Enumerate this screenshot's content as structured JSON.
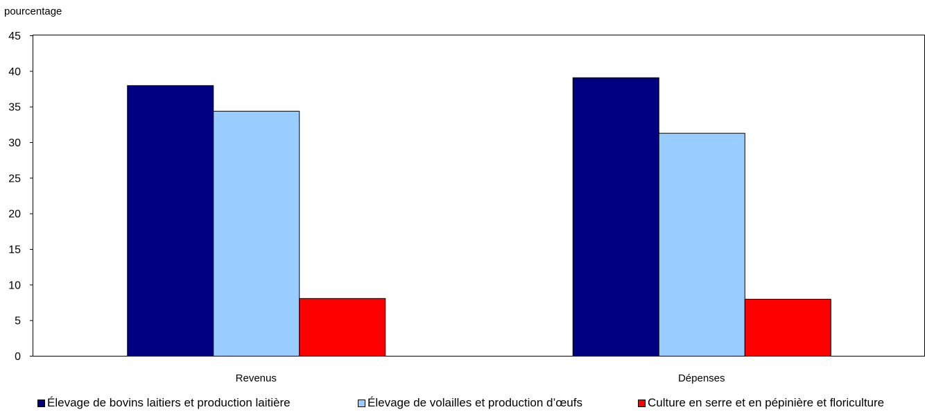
{
  "chart_data": {
    "type": "bar",
    "title": "",
    "ylabel": "pourcentage",
    "xlabel": "",
    "ylim": [
      0,
      45
    ],
    "yticks": [
      0,
      5,
      10,
      15,
      20,
      25,
      30,
      35,
      40,
      45
    ],
    "grid": false,
    "legend_position": "bottom",
    "categories": [
      "Revenus",
      "Dépenses"
    ],
    "series": [
      {
        "name": "Élevage de bovins laitiers et production laitière",
        "color": "#000080",
        "values": [
          38.0,
          39.1
        ]
      },
      {
        "name": "Élevage de volailles et production d’œufs",
        "color": "#99ccff",
        "values": [
          34.4,
          31.3
        ]
      },
      {
        "name": "Culture en serre et en pépinière et floriculture",
        "color": "#ff0000",
        "values": [
          8.1,
          8.0
        ]
      }
    ]
  }
}
